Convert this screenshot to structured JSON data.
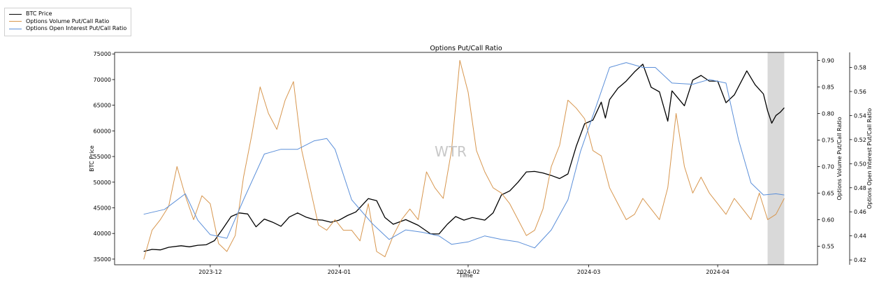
{
  "chart_data": {
    "type": "line",
    "title": "Options Put/Call Ratio",
    "xlabel": "Time",
    "ylabel": "BTC Price",
    "y2label": "Options Volume Put/Call Ratio",
    "y3label": "Options Open Interest Put/Call Ratio",
    "watermark": "WTR",
    "legend_position": "top-left (outside plot)",
    "grid": false,
    "x_ticks": [
      "2023-12",
      "2024-01",
      "2024-02",
      "2024-03",
      "2024-04"
    ],
    "x_tick_dates": [
      "2023-12-01",
      "2024-01-01",
      "2024-02-01",
      "2024-03-01",
      "2024-04-01"
    ],
    "xlim": [
      "2023-11-08",
      "2024-04-25"
    ],
    "y_ticks": [
      35000,
      40000,
      45000,
      50000,
      55000,
      60000,
      65000,
      70000,
      75000
    ],
    "ylim": [
      33900,
      75300
    ],
    "y2_ticks": [
      0.55,
      0.6,
      0.65,
      0.7,
      0.75,
      0.8,
      0.85,
      0.9
    ],
    "y2_tick_labels": [
      "0.55",
      "0.60",
      "0.65",
      "0.70",
      "0.75",
      "0.80",
      "0.85",
      "0.90"
    ],
    "y2lim": [
      0.515,
      0.915
    ],
    "y3_ticks": [
      0.42,
      0.44,
      0.46,
      0.48,
      0.5,
      0.52,
      0.54,
      0.56,
      0.58
    ],
    "y3_tick_labels": [
      "0.42",
      "0.44",
      "0.46",
      "0.48",
      "0.50",
      "0.52",
      "0.54",
      "0.56",
      "0.58"
    ],
    "y3lim": [
      0.416,
      0.5925
    ],
    "shaded_region": [
      "2024-04-13",
      "2024-04-17"
    ],
    "series": [
      {
        "name": "BTC Price",
        "color": "#000000",
        "axis": "left",
        "points": [
          [
            "2023-11-15",
            36500
          ],
          [
            "2023-11-17",
            36900
          ],
          [
            "2023-11-19",
            36800
          ],
          [
            "2023-11-21",
            37300
          ],
          [
            "2023-11-24",
            37600
          ],
          [
            "2023-11-26",
            37400
          ],
          [
            "2023-11-28",
            37700
          ],
          [
            "2023-11-30",
            37800
          ],
          [
            "2023-12-02",
            38600
          ],
          [
            "2023-12-04",
            40900
          ],
          [
            "2023-12-06",
            43300
          ],
          [
            "2023-12-08",
            44000
          ],
          [
            "2023-12-10",
            43800
          ],
          [
            "2023-12-12",
            41300
          ],
          [
            "2023-12-14",
            42800
          ],
          [
            "2023-12-16",
            42200
          ],
          [
            "2023-12-18",
            41400
          ],
          [
            "2023-12-20",
            43200
          ],
          [
            "2023-12-22",
            44000
          ],
          [
            "2023-12-24",
            43200
          ],
          [
            "2023-12-26",
            42700
          ],
          [
            "2023-12-28",
            42600
          ],
          [
            "2023-12-30",
            42200
          ],
          [
            "2024-01-01",
            42600
          ],
          [
            "2024-01-03",
            43500
          ],
          [
            "2024-01-05",
            44200
          ],
          [
            "2024-01-08",
            46800
          ],
          [
            "2024-01-10",
            46400
          ],
          [
            "2024-01-12",
            43100
          ],
          [
            "2024-01-14",
            41800
          ],
          [
            "2024-01-17",
            42700
          ],
          [
            "2024-01-20",
            41600
          ],
          [
            "2024-01-23",
            39900
          ],
          [
            "2024-01-25",
            39900
          ],
          [
            "2024-01-27",
            41800
          ],
          [
            "2024-01-29",
            43300
          ],
          [
            "2024-01-31",
            42600
          ],
          [
            "2024-02-02",
            43100
          ],
          [
            "2024-02-05",
            42600
          ],
          [
            "2024-02-07",
            44000
          ],
          [
            "2024-02-09",
            47500
          ],
          [
            "2024-02-11",
            48300
          ],
          [
            "2024-02-13",
            50000
          ],
          [
            "2024-02-15",
            52000
          ],
          [
            "2024-02-17",
            52100
          ],
          [
            "2024-02-19",
            51800
          ],
          [
            "2024-02-21",
            51300
          ],
          [
            "2024-02-23",
            50700
          ],
          [
            "2024-02-25",
            51600
          ],
          [
            "2024-02-27",
            57000
          ],
          [
            "2024-02-29",
            61400
          ],
          [
            "2024-03-02",
            62100
          ],
          [
            "2024-03-04",
            65600
          ],
          [
            "2024-03-05",
            62500
          ],
          [
            "2024-03-06",
            66100
          ],
          [
            "2024-03-08",
            68300
          ],
          [
            "2024-03-10",
            69700
          ],
          [
            "2024-03-12",
            71500
          ],
          [
            "2024-03-14",
            73000
          ],
          [
            "2024-03-16",
            68500
          ],
          [
            "2024-03-18",
            67600
          ],
          [
            "2024-03-20",
            61900
          ],
          [
            "2024-03-21",
            67800
          ],
          [
            "2024-03-24",
            64900
          ],
          [
            "2024-03-26",
            69900
          ],
          [
            "2024-03-28",
            70800
          ],
          [
            "2024-03-30",
            69700
          ],
          [
            "2024-04-01",
            69700
          ],
          [
            "2024-04-03",
            65500
          ],
          [
            "2024-04-05",
            67000
          ],
          [
            "2024-04-08",
            71700
          ],
          [
            "2024-04-10",
            69000
          ],
          [
            "2024-04-12",
            67200
          ],
          [
            "2024-04-13",
            63900
          ],
          [
            "2024-04-14",
            61500
          ],
          [
            "2024-04-15",
            63000
          ],
          [
            "2024-04-16",
            63600
          ],
          [
            "2024-04-17",
            64500
          ]
        ]
      },
      {
        "name": "Options Volume Put/Call Ratio",
        "color": "#d7964e",
        "axis": "right",
        "points": [
          [
            "2023-11-15",
            0.525
          ],
          [
            "2023-11-17",
            0.58
          ],
          [
            "2023-11-19",
            0.6
          ],
          [
            "2023-11-21",
            0.625
          ],
          [
            "2023-11-23",
            0.7
          ],
          [
            "2023-11-25",
            0.645
          ],
          [
            "2023-11-27",
            0.6
          ],
          [
            "2023-11-29",
            0.645
          ],
          [
            "2023-12-01",
            0.63
          ],
          [
            "2023-12-03",
            0.555
          ],
          [
            "2023-12-05",
            0.54
          ],
          [
            "2023-12-07",
            0.57
          ],
          [
            "2023-12-09",
            0.68
          ],
          [
            "2023-12-11",
            0.76
          ],
          [
            "2023-12-13",
            0.85
          ],
          [
            "2023-12-15",
            0.8
          ],
          [
            "2023-12-17",
            0.77
          ],
          [
            "2023-12-19",
            0.825
          ],
          [
            "2023-12-21",
            0.86
          ],
          [
            "2023-12-23",
            0.73
          ],
          [
            "2023-12-25",
            0.66
          ],
          [
            "2023-12-27",
            0.59
          ],
          [
            "2023-12-29",
            0.58
          ],
          [
            "2023-12-31",
            0.6
          ],
          [
            "2024-01-02",
            0.58
          ],
          [
            "2024-01-04",
            0.58
          ],
          [
            "2024-01-06",
            0.56
          ],
          [
            "2024-01-08",
            0.63
          ],
          [
            "2024-01-10",
            0.54
          ],
          [
            "2024-01-12",
            0.53
          ],
          [
            "2024-01-14",
            0.57
          ],
          [
            "2024-01-16",
            0.6
          ],
          [
            "2024-01-18",
            0.62
          ],
          [
            "2024-01-20",
            0.6
          ],
          [
            "2024-01-22",
            0.69
          ],
          [
            "2024-01-24",
            0.66
          ],
          [
            "2024-01-26",
            0.64
          ],
          [
            "2024-01-28",
            0.73
          ],
          [
            "2024-01-30",
            0.9
          ],
          [
            "2024-02-01",
            0.84
          ],
          [
            "2024-02-03",
            0.73
          ],
          [
            "2024-02-05",
            0.69
          ],
          [
            "2024-02-07",
            0.66
          ],
          [
            "2024-02-09",
            0.65
          ],
          [
            "2024-02-11",
            0.63
          ],
          [
            "2024-02-13",
            0.6
          ],
          [
            "2024-02-15",
            0.57
          ],
          [
            "2024-02-17",
            0.58
          ],
          [
            "2024-02-19",
            0.62
          ],
          [
            "2024-02-21",
            0.7
          ],
          [
            "2024-02-23",
            0.74
          ],
          [
            "2024-02-25",
            0.825
          ],
          [
            "2024-02-27",
            0.81
          ],
          [
            "2024-02-29",
            0.79
          ],
          [
            "2024-03-02",
            0.73
          ],
          [
            "2024-03-04",
            0.72
          ],
          [
            "2024-03-06",
            0.66
          ],
          [
            "2024-03-08",
            0.63
          ],
          [
            "2024-03-10",
            0.6
          ],
          [
            "2024-03-12",
            0.61
          ],
          [
            "2024-03-14",
            0.64
          ],
          [
            "2024-03-16",
            0.62
          ],
          [
            "2024-03-18",
            0.6
          ],
          [
            "2024-03-20",
            0.66
          ],
          [
            "2024-03-22",
            0.8
          ],
          [
            "2024-03-24",
            0.7
          ],
          [
            "2024-03-26",
            0.65
          ],
          [
            "2024-03-28",
            0.68
          ],
          [
            "2024-03-30",
            0.65
          ],
          [
            "2024-04-01",
            0.63
          ],
          [
            "2024-04-03",
            0.61
          ],
          [
            "2024-04-05",
            0.64
          ],
          [
            "2024-04-07",
            0.62
          ],
          [
            "2024-04-09",
            0.6
          ],
          [
            "2024-04-11",
            0.65
          ],
          [
            "2024-04-13",
            0.6
          ],
          [
            "2024-04-15",
            0.61
          ],
          [
            "2024-04-17",
            0.64
          ]
        ]
      },
      {
        "name": "Options Open Interest Put/Call Ratio",
        "color": "#5b8fd9",
        "axis": "right2",
        "points": [
          [
            "2023-11-15",
            0.458
          ],
          [
            "2023-11-20",
            0.462
          ],
          [
            "2023-11-25",
            0.475
          ],
          [
            "2023-11-28",
            0.453
          ],
          [
            "2023-12-01",
            0.441
          ],
          [
            "2023-12-05",
            0.438
          ],
          [
            "2023-12-09",
            0.47
          ],
          [
            "2023-12-14",
            0.508
          ],
          [
            "2023-12-18",
            0.512
          ],
          [
            "2023-12-22",
            0.512
          ],
          [
            "2023-12-26",
            0.519
          ],
          [
            "2023-12-29",
            0.521
          ],
          [
            "2023-12-31",
            0.512
          ],
          [
            "2024-01-04",
            0.47
          ],
          [
            "2024-01-09",
            0.45
          ],
          [
            "2024-01-13",
            0.437
          ],
          [
            "2024-01-17",
            0.445
          ],
          [
            "2024-01-21",
            0.443
          ],
          [
            "2024-01-25",
            0.44
          ],
          [
            "2024-01-28",
            0.433
          ],
          [
            "2024-02-01",
            0.435
          ],
          [
            "2024-02-05",
            0.44
          ],
          [
            "2024-02-09",
            0.437
          ],
          [
            "2024-02-13",
            0.435
          ],
          [
            "2024-02-17",
            0.43
          ],
          [
            "2024-02-21",
            0.445
          ],
          [
            "2024-02-25",
            0.47
          ],
          [
            "2024-02-28",
            0.51
          ],
          [
            "2024-03-02",
            0.54
          ],
          [
            "2024-03-06",
            0.58
          ],
          [
            "2024-03-10",
            0.584
          ],
          [
            "2024-03-14",
            0.58
          ],
          [
            "2024-03-17",
            0.58
          ],
          [
            "2024-03-21",
            0.567
          ],
          [
            "2024-03-26",
            0.566
          ],
          [
            "2024-03-30",
            0.57
          ],
          [
            "2024-04-03",
            0.567
          ],
          [
            "2024-04-06",
            0.52
          ],
          [
            "2024-04-09",
            0.484
          ],
          [
            "2024-04-12",
            0.474
          ],
          [
            "2024-04-15",
            0.475
          ],
          [
            "2024-04-17",
            0.474
          ]
        ]
      }
    ]
  }
}
